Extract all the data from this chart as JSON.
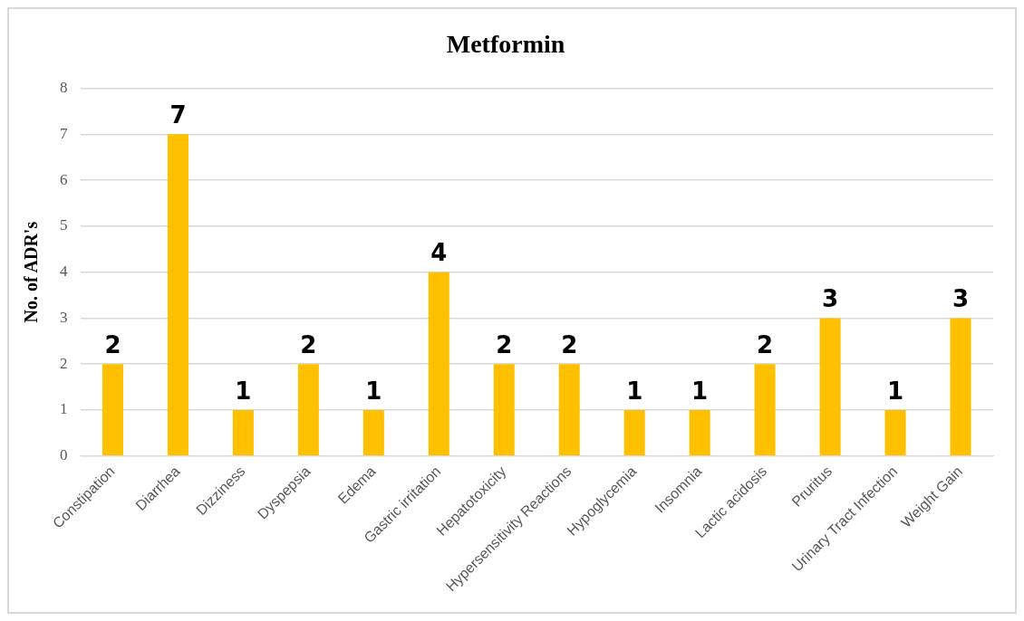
{
  "chart_data": {
    "type": "bar",
    "title": "Metformin",
    "ylabel": "No. of ADR's",
    "categories": [
      "Constipation",
      "Diarrhea",
      "Dizziness",
      "Dyspepsia",
      "Edema",
      "Gastric irritation",
      "Hepatotoxicity",
      "Hypersensitivity Reactions",
      "Hypoglycemia",
      "Insomnia",
      "Lactic acidosis",
      "Pruritus",
      "Urinary Tract Infection",
      "Weight Gain"
    ],
    "values": [
      2,
      7,
      1,
      2,
      1,
      4,
      2,
      2,
      1,
      1,
      2,
      3,
      1,
      3
    ],
    "color": "#ffc000",
    "ylim": [
      0,
      8
    ],
    "yticks": [
      0,
      1,
      2,
      3,
      4,
      5,
      6,
      7,
      8
    ],
    "grid": "y",
    "data_labels": true
  }
}
